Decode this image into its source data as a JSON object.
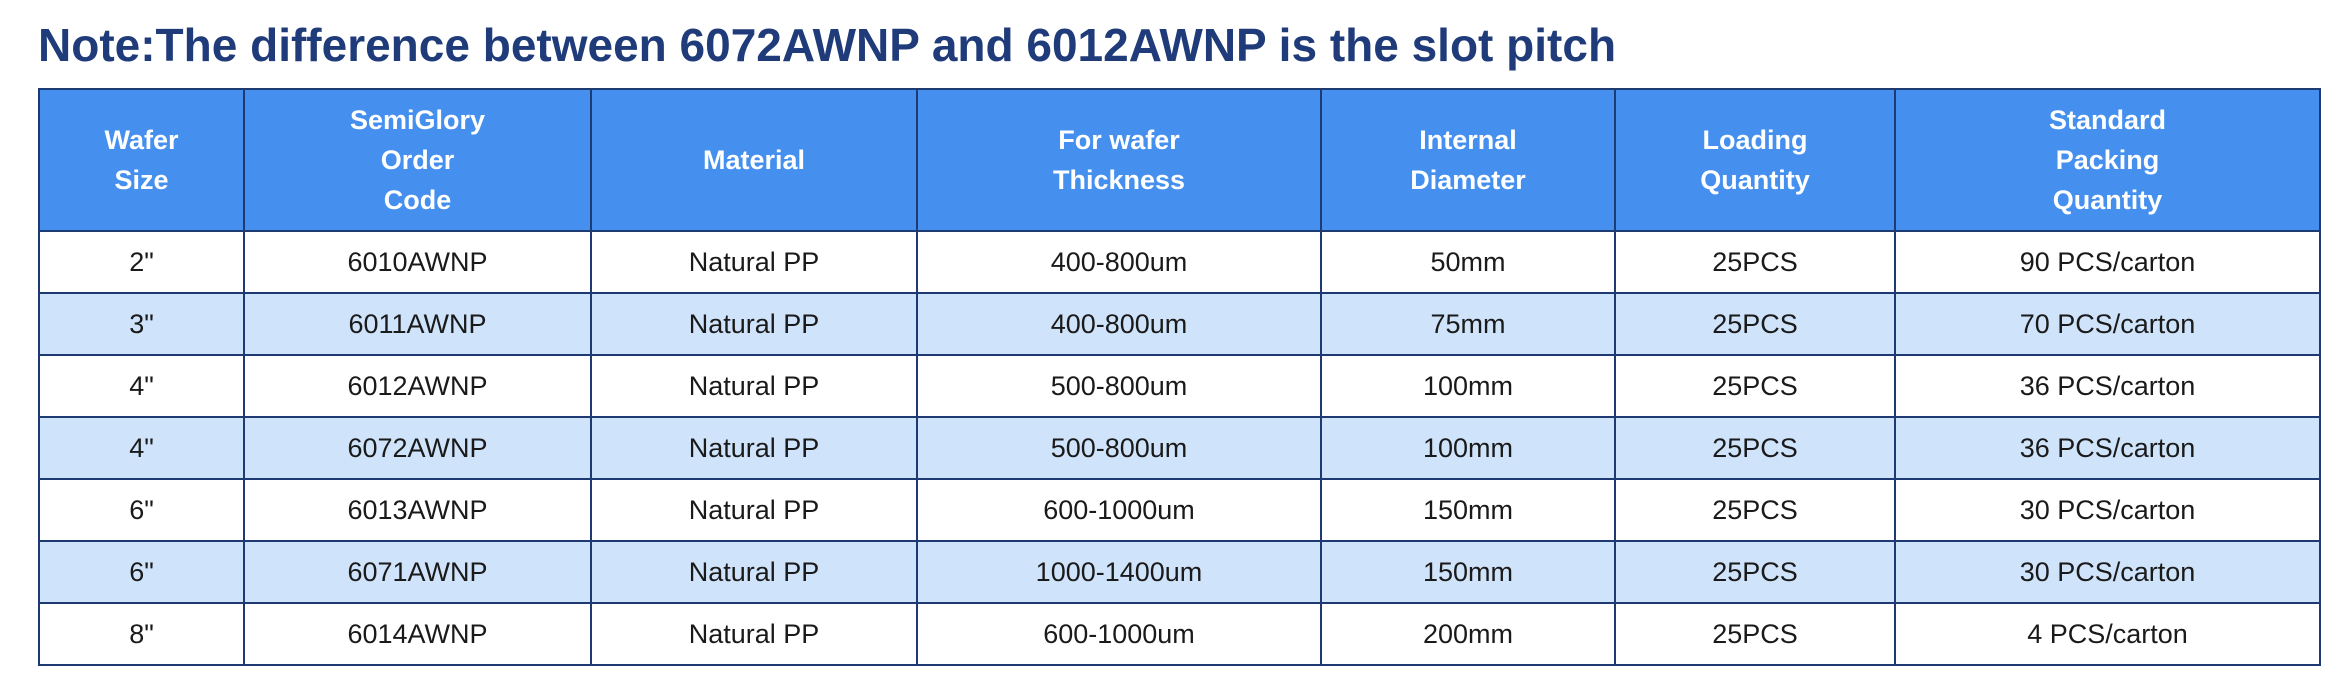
{
  "note": "Note:The difference between 6072AWNP and 6012AWNP is the slot pitch",
  "colors": {
    "title": "#1f3b7a",
    "header_bg": "#4590ef",
    "header_text": "#ffffff",
    "row_alt_bg": "#cfe3fa",
    "border": "#1e3a73"
  },
  "headers": [
    [
      "Wafer",
      "Size"
    ],
    [
      "SemiGlory",
      "Order",
      "Code"
    ],
    [
      "Material"
    ],
    [
      "For wafer",
      "Thickness"
    ],
    [
      "Internal",
      "Diameter"
    ],
    [
      "Loading",
      "Quantity"
    ],
    [
      "Standard",
      "Packing",
      "Quantity"
    ]
  ],
  "rows": [
    [
      "2\"",
      "6010AWNP",
      "Natural PP",
      "400-800um",
      "50mm",
      "25PCS",
      "90 PCS/carton"
    ],
    [
      "3\"",
      "6011AWNP",
      "Natural PP",
      "400-800um",
      "75mm",
      "25PCS",
      "70 PCS/carton"
    ],
    [
      "4\"",
      "6012AWNP",
      "Natural PP",
      "500-800um",
      "100mm",
      "25PCS",
      "36 PCS/carton"
    ],
    [
      "4\"",
      "6072AWNP",
      "Natural PP",
      "500-800um",
      "100mm",
      "25PCS",
      "36 PCS/carton"
    ],
    [
      "6\"",
      "6013AWNP",
      "Natural PP",
      "600-1000um",
      "150mm",
      "25PCS",
      "30 PCS/carton"
    ],
    [
      "6\"",
      "6071AWNP",
      "Natural PP",
      "1000-1400um",
      "150mm",
      "25PCS",
      "30 PCS/carton"
    ],
    [
      "8\"",
      "6014AWNP",
      "Natural PP",
      "600-1000um",
      "200mm",
      "25PCS",
      "4 PCS/carton"
    ]
  ]
}
